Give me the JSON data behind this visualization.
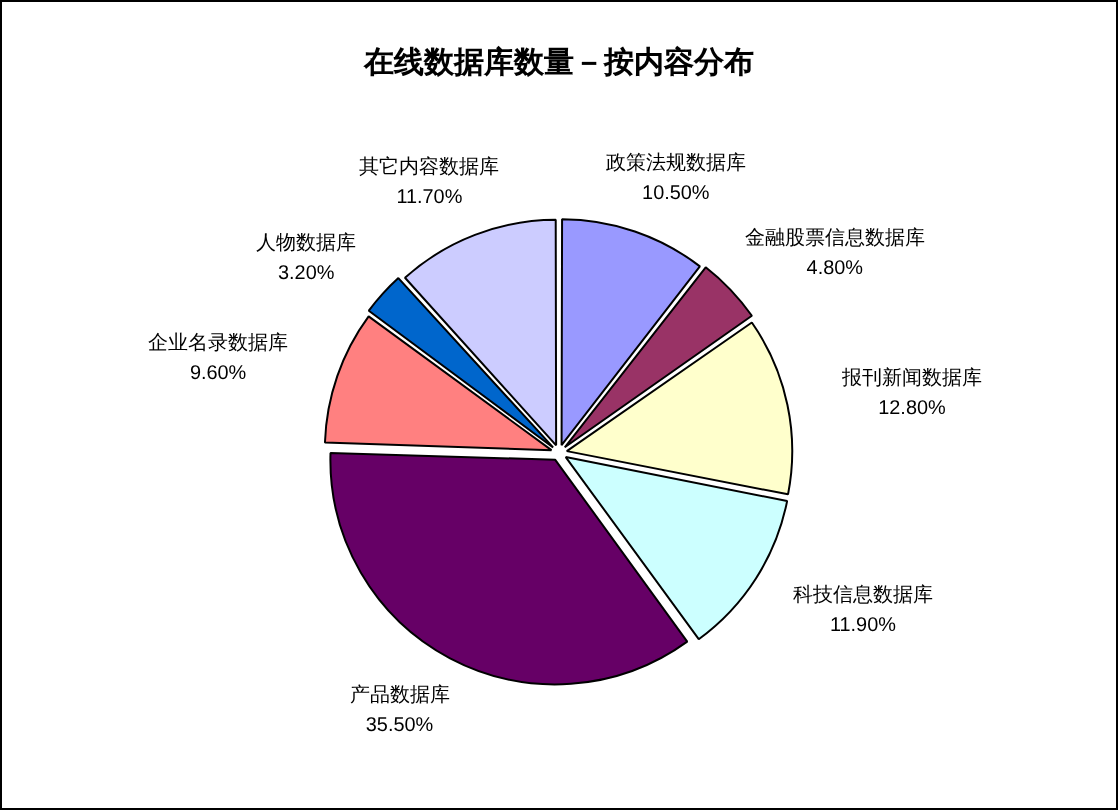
{
  "chart_data": {
    "type": "pie",
    "title": "在线数据库数量－按内容分布",
    "categories": [
      "政策法规数据库",
      "金融股票信息数据库",
      "报刊新闻数据库",
      "科技信息数据库",
      "产品数据库",
      "企业名录数据库",
      "人物数据库",
      "其它内容数据库"
    ],
    "values": [
      10.5,
      4.8,
      12.8,
      11.9,
      35.5,
      9.6,
      3.2,
      11.7
    ],
    "value_labels": [
      "10.50%",
      "4.80%",
      "12.80%",
      "11.90%",
      "35.50%",
      "9.60%",
      "3.20%",
      "11.70%"
    ],
    "colors": [
      "#9999ff",
      "#993366",
      "#ffffcc",
      "#ccffff",
      "#660066",
      "#ff8080",
      "#0066cc",
      "#ccccff"
    ],
    "legend": false
  }
}
